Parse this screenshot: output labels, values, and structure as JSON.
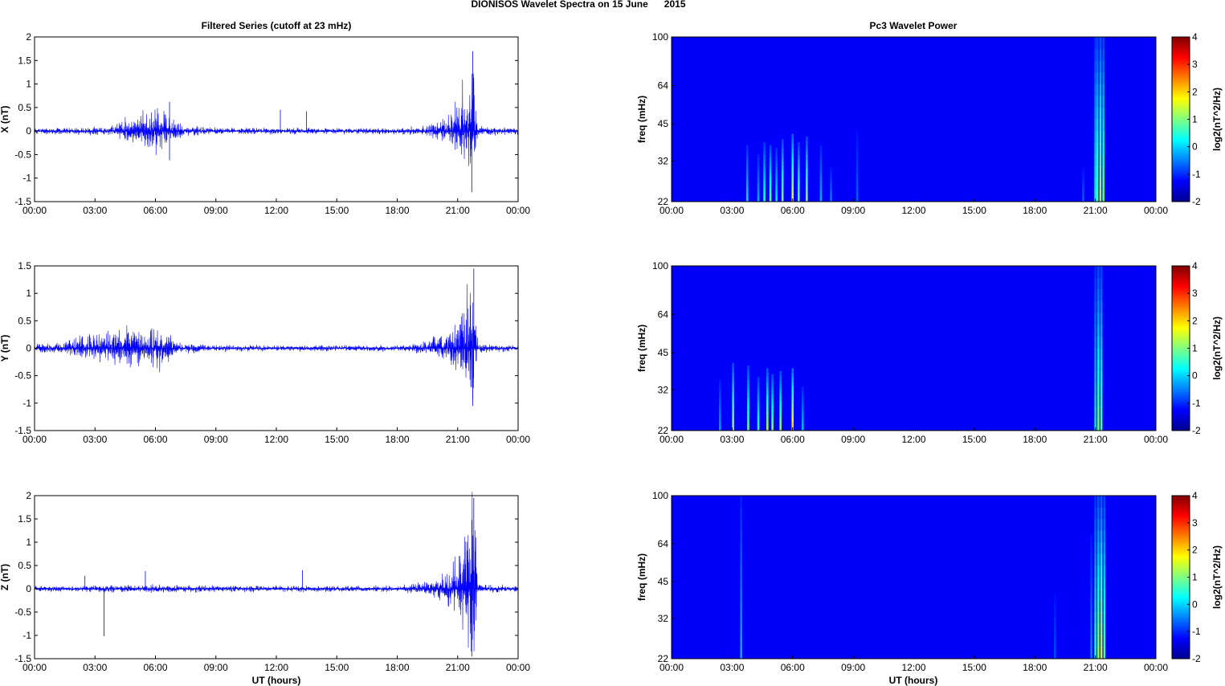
{
  "figure": {
    "title": "DIONISOS Wavelet Spectra on 15 June      2015",
    "left_column_title": "Filtered Series (cutoff at 23 mHz)",
    "right_column_title": "Pc3 Wavelet Power",
    "xlabel": "UT (hours)"
  },
  "chart_data": [
    {
      "type": "line",
      "component": "X",
      "ylabel": "X (nT)",
      "x_ticks": [
        "00:00",
        "03:00",
        "06:00",
        "09:00",
        "12:00",
        "15:00",
        "18:00",
        "21:00",
        "00:00"
      ],
      "xlim_hours": [
        0,
        24
      ],
      "ylim": [
        -1.5,
        2
      ],
      "y_ticks": [
        "-1.5",
        "-1",
        "-0.5",
        "0",
        "0.5",
        "1",
        "1.5",
        "2"
      ],
      "y_tick_values": [
        -1.5,
        -1,
        -0.5,
        0,
        0.5,
        1,
        1.5,
        2
      ],
      "series_color": "#0000ff",
      "envelope": {
        "hours": [
          0,
          3.5,
          4.5,
          5.5,
          6.0,
          6.7,
          7.5,
          9,
          12,
          15,
          18,
          19.5,
          20.5,
          21.0,
          21.5,
          21.8,
          22.0,
          24
        ],
        "pos": [
          0.06,
          0.08,
          0.25,
          0.4,
          0.5,
          0.3,
          0.12,
          0.07,
          0.06,
          0.06,
          0.06,
          0.12,
          0.3,
          0.6,
          1.2,
          1.6,
          0.1,
          0.06
        ],
        "neg": [
          0.06,
          0.08,
          0.2,
          0.35,
          0.5,
          0.25,
          0.1,
          0.06,
          0.06,
          0.06,
          0.06,
          0.1,
          0.25,
          0.55,
          0.9,
          1.1,
          0.1,
          0.06
        ]
      },
      "spikes": [
        {
          "hour": 6.7,
          "value": 0.62
        },
        {
          "hour": 6.7,
          "value": -0.62
        },
        {
          "hour": 12.2,
          "value": 0.45
        },
        {
          "hour": 13.5,
          "value": 0.42
        },
        {
          "hour": 21.75,
          "value": 1.7
        },
        {
          "hour": 21.7,
          "value": -1.3
        }
      ]
    },
    {
      "type": "line",
      "component": "Y",
      "ylabel": "Y (nT)",
      "x_ticks": [
        "00:00",
        "03:00",
        "06:00",
        "09:00",
        "12:00",
        "15:00",
        "18:00",
        "21:00",
        "00:00"
      ],
      "xlim_hours": [
        0,
        24
      ],
      "ylim": [
        -1.5,
        1.5
      ],
      "y_ticks": [
        "-1.5",
        "-1",
        "-0.5",
        "0",
        "0.5",
        "1",
        "1.5"
      ],
      "y_tick_values": [
        -1.5,
        -1,
        -0.5,
        0,
        0.5,
        1,
        1.5
      ],
      "series_color": "#0000ff",
      "envelope": {
        "hours": [
          0,
          1.5,
          2.5,
          3.5,
          4.5,
          5.5,
          6.2,
          7.0,
          9,
          12,
          15,
          18,
          19.5,
          20.5,
          21.0,
          21.5,
          21.8,
          22.0,
          24
        ],
        "pos": [
          0.08,
          0.12,
          0.25,
          0.3,
          0.4,
          0.3,
          0.4,
          0.12,
          0.06,
          0.05,
          0.05,
          0.05,
          0.12,
          0.3,
          0.5,
          1.1,
          1.4,
          0.08,
          0.05
        ],
        "neg": [
          0.08,
          0.1,
          0.2,
          0.25,
          0.3,
          0.25,
          0.4,
          0.1,
          0.06,
          0.05,
          0.05,
          0.05,
          0.1,
          0.2,
          0.4,
          0.7,
          1.05,
          0.08,
          0.05
        ]
      },
      "spikes": [
        {
          "hour": 21.8,
          "value": 1.45
        },
        {
          "hour": 21.75,
          "value": -1.05
        }
      ]
    },
    {
      "type": "line",
      "component": "Z",
      "ylabel": "Z (nT)",
      "x_ticks": [
        "00:00",
        "03:00",
        "06:00",
        "09:00",
        "12:00",
        "15:00",
        "18:00",
        "21:00",
        "00:00"
      ],
      "xlim_hours": [
        0,
        24
      ],
      "ylim": [
        -1.5,
        2
      ],
      "y_ticks": [
        "-1.5",
        "-1",
        "-0.5",
        "0",
        "0.5",
        "1",
        "1.5",
        "2"
      ],
      "y_tick_values": [
        -1.5,
        -1,
        -0.5,
        0,
        0.5,
        1,
        1.5,
        2
      ],
      "series_color": "#0000ff",
      "envelope": {
        "hours": [
          0,
          3,
          6,
          9,
          12,
          15,
          18,
          19.5,
          20.5,
          21.0,
          21.5,
          21.8,
          22.0,
          24
        ],
        "pos": [
          0.06,
          0.07,
          0.08,
          0.07,
          0.06,
          0.06,
          0.06,
          0.15,
          0.35,
          0.7,
          1.4,
          1.9,
          0.1,
          0.06
        ],
        "neg": [
          0.06,
          0.07,
          0.08,
          0.07,
          0.06,
          0.06,
          0.06,
          0.12,
          0.3,
          0.5,
          1.0,
          1.4,
          0.1,
          0.06
        ]
      },
      "spikes": [
        {
          "hour": 3.45,
          "value": -1.02
        },
        {
          "hour": 2.5,
          "value": 0.28
        },
        {
          "hour": 5.5,
          "value": 0.38
        },
        {
          "hour": 13.3,
          "value": 0.4
        },
        {
          "hour": 21.8,
          "value": 1.95
        },
        {
          "hour": 21.7,
          "value": -1.45
        }
      ]
    },
    {
      "type": "heatmap",
      "component": "X",
      "ylabel": "freq (mHz)",
      "y_ticks": [
        "22",
        "32",
        "45",
        "64",
        "100"
      ],
      "y_tick_values": [
        22,
        32,
        45,
        64,
        100
      ],
      "ylim": [
        22,
        100
      ],
      "yscale": "log",
      "x_ticks": [
        "00:00",
        "03:00",
        "06:00",
        "09:00",
        "12:00",
        "15:00",
        "18:00",
        "21:00",
        "00:00"
      ],
      "xlim_hours": [
        0,
        24
      ],
      "colorbar": {
        "label": "log2(nT^2/Hz)",
        "ticks": [
          "4",
          "3",
          "2",
          "1",
          "0",
          "-1",
          "-2"
        ],
        "tick_values": [
          4,
          3,
          2,
          1,
          0,
          -1,
          -2
        ],
        "range": [
          -2,
          4
        ],
        "colormap": "jet"
      },
      "background_value": -2,
      "streaks": [
        {
          "hour": 3.75,
          "top_freq": 37,
          "peak": -0.6
        },
        {
          "hour": 4.3,
          "top_freq": 34,
          "peak": -0.9
        },
        {
          "hour": 4.6,
          "top_freq": 38,
          "peak": -0.2
        },
        {
          "hour": 4.9,
          "top_freq": 37,
          "peak": 0.2
        },
        {
          "hour": 5.2,
          "top_freq": 36,
          "peak": -0.5
        },
        {
          "hour": 5.5,
          "top_freq": 39,
          "peak": 0.3
        },
        {
          "hour": 6.0,
          "top_freq": 41,
          "peak": 1.0
        },
        {
          "hour": 6.3,
          "top_freq": 38,
          "peak": 0.1
        },
        {
          "hour": 6.7,
          "top_freq": 40,
          "peak": 0.4
        },
        {
          "hour": 7.4,
          "top_freq": 37,
          "peak": -0.9
        },
        {
          "hour": 7.9,
          "top_freq": 30,
          "peak": -1.2
        },
        {
          "hour": 9.2,
          "top_freq": 42,
          "peak": -1.4
        },
        {
          "hour": 20.4,
          "top_freq": 30,
          "peak": -1.4
        },
        {
          "hour": 21.0,
          "top_freq": 100,
          "peak": -0.4
        },
        {
          "hour": 21.1,
          "top_freq": 100,
          "peak": 0.1
        },
        {
          "hour": 21.25,
          "top_freq": 100,
          "peak": 0.6
        },
        {
          "hour": 21.4,
          "top_freq": 100,
          "peak": 0.1
        }
      ]
    },
    {
      "type": "heatmap",
      "component": "Y",
      "ylabel": "freq (mHz)",
      "y_ticks": [
        "22",
        "32",
        "45",
        "64",
        "100"
      ],
      "y_tick_values": [
        22,
        32,
        45,
        64,
        100
      ],
      "ylim": [
        22,
        100
      ],
      "yscale": "log",
      "x_ticks": [
        "00:00",
        "03:00",
        "06:00",
        "09:00",
        "12:00",
        "15:00",
        "18:00",
        "21:00",
        "00:00"
      ],
      "xlim_hours": [
        0,
        24
      ],
      "colorbar": {
        "label": "log2(nT^2/Hz)",
        "ticks": [
          "4",
          "3",
          "2",
          "1",
          "0",
          "-1",
          "-2"
        ],
        "tick_values": [
          4,
          3,
          2,
          1,
          0,
          -1,
          -2
        ],
        "range": [
          -2,
          4
        ],
        "colormap": "jet"
      },
      "background_value": -2,
      "streaks": [
        {
          "hour": 2.4,
          "top_freq": 35,
          "peak": -1.0
        },
        {
          "hour": 3.05,
          "top_freq": 41,
          "peak": 0.5
        },
        {
          "hour": 3.8,
          "top_freq": 40,
          "peak": 0.2
        },
        {
          "hour": 4.3,
          "top_freq": 36,
          "peak": -0.1
        },
        {
          "hour": 4.75,
          "top_freq": 39,
          "peak": 0.6
        },
        {
          "hour": 5.0,
          "top_freq": 37,
          "peak": 0.3
        },
        {
          "hour": 5.4,
          "top_freq": 38,
          "peak": 0.4
        },
        {
          "hour": 6.0,
          "top_freq": 39,
          "peak": 1.4
        },
        {
          "hour": 6.5,
          "top_freq": 33,
          "peak": -0.8
        },
        {
          "hour": 21.0,
          "top_freq": 100,
          "peak": -0.6
        },
        {
          "hour": 21.15,
          "top_freq": 100,
          "peak": 0.3
        },
        {
          "hour": 21.3,
          "top_freq": 100,
          "peak": 0.0
        }
      ]
    },
    {
      "type": "heatmap",
      "component": "Z",
      "ylabel": "freq (mHz)",
      "y_ticks": [
        "22",
        "32",
        "45",
        "64",
        "100"
      ],
      "y_tick_values": [
        22,
        32,
        45,
        64,
        100
      ],
      "ylim": [
        22,
        100
      ],
      "yscale": "log",
      "x_ticks": [
        "00:00",
        "03:00",
        "06:00",
        "09:00",
        "12:00",
        "15:00",
        "18:00",
        "21:00",
        "00:00"
      ],
      "xlim_hours": [
        0,
        24
      ],
      "colorbar": {
        "label": "log2(nT^2/Hz)",
        "ticks": [
          "4",
          "3",
          "2",
          "1",
          "0",
          "-1",
          "-2"
        ],
        "tick_values": [
          4,
          3,
          2,
          1,
          0,
          -1,
          -2
        ],
        "range": [
          -2,
          4
        ],
        "colormap": "jet"
      },
      "background_value": -2,
      "streaks": [
        {
          "hour": 3.45,
          "top_freq": 100,
          "peak": -0.9
        },
        {
          "hour": 19.0,
          "top_freq": 40,
          "peak": -1.5
        },
        {
          "hour": 20.8,
          "top_freq": 70,
          "peak": -1.2
        },
        {
          "hour": 21.0,
          "top_freq": 100,
          "peak": -0.3
        },
        {
          "hour": 21.15,
          "top_freq": 100,
          "peak": 0.5
        },
        {
          "hour": 21.3,
          "top_freq": 100,
          "peak": 0.8
        },
        {
          "hour": 21.45,
          "top_freq": 100,
          "peak": 0.1
        }
      ]
    }
  ]
}
